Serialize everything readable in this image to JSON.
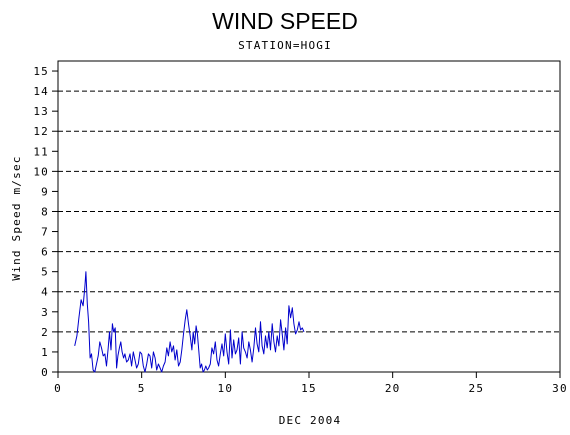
{
  "chart_data": {
    "type": "line",
    "title": "WIND SPEED",
    "subtitle": "STATION=HOGI",
    "xlabel": "DEC 2004",
    "ylabel": "Wind Speed m/sec",
    "xlim": [
      0,
      30
    ],
    "ylim": [
      0,
      15.5
    ],
    "x_ticks": [
      "0",
      "5",
      "10",
      "15",
      "20",
      "25",
      "30"
    ],
    "x_tick_values": [
      0,
      5,
      10,
      15,
      20,
      25,
      30
    ],
    "y_ticks": [
      "0",
      "1",
      "2",
      "3",
      "4",
      "5",
      "6",
      "7",
      "8",
      "9",
      "10",
      "11",
      "12",
      "13",
      "14",
      "15"
    ],
    "y_tick_values": [
      0,
      1,
      2,
      3,
      4,
      5,
      6,
      7,
      8,
      9,
      10,
      11,
      12,
      13,
      14,
      15
    ],
    "gridlines_y": [
      0,
      2,
      4,
      6,
      8,
      10,
      12,
      14
    ],
    "grid": "dashed horizontal at even values",
    "line_color": "#0000cc",
    "series": [
      {
        "x": [
          1.0,
          1.13,
          1.25,
          1.38,
          1.5,
          1.6,
          1.67,
          1.75,
          1.83,
          1.92,
          2.0,
          2.1,
          2.2,
          2.3,
          2.4,
          2.5,
          2.6,
          2.7,
          2.8,
          2.9,
          3.0,
          3.08,
          3.17,
          3.25,
          3.33,
          3.42,
          3.5,
          3.58,
          3.67,
          3.75,
          3.83,
          3.92,
          4.0,
          4.1,
          4.2,
          4.3,
          4.4,
          4.5,
          4.6,
          4.7,
          4.8,
          4.9,
          5.0,
          5.1,
          5.2,
          5.3,
          5.4,
          5.5,
          5.6,
          5.7,
          5.8,
          5.9,
          6.0,
          6.1,
          6.2,
          6.3,
          6.4,
          6.5,
          6.6,
          6.7,
          6.8,
          6.9,
          7.0,
          7.1,
          7.2,
          7.3,
          7.4,
          7.5,
          7.6,
          7.7,
          7.8,
          7.9,
          8.0,
          8.08,
          8.17,
          8.25,
          8.33,
          8.42,
          8.5,
          8.58,
          8.67,
          8.75,
          8.83,
          8.92,
          9.0,
          9.1,
          9.2,
          9.3,
          9.4,
          9.5,
          9.6,
          9.7,
          9.8,
          9.9,
          10.0,
          10.1,
          10.2,
          10.3,
          10.4,
          10.5,
          10.6,
          10.7,
          10.8,
          10.9,
          11.0,
          11.1,
          11.2,
          11.3,
          11.4,
          11.5,
          11.6,
          11.7,
          11.8,
          11.9,
          12.0,
          12.1,
          12.2,
          12.3,
          12.4,
          12.5,
          12.6,
          12.7,
          12.8,
          12.9,
          13.0,
          13.1,
          13.2,
          13.3,
          13.4,
          13.5,
          13.6,
          13.7,
          13.8,
          13.9,
          14.0,
          14.1,
          14.2,
          14.3,
          14.4,
          14.5,
          14.6,
          14.7
        ],
        "y": [
          1.3,
          1.8,
          2.7,
          3.6,
          3.3,
          4.2,
          5.0,
          3.4,
          2.5,
          0.7,
          0.9,
          0.1,
          0.0,
          0.4,
          0.8,
          1.5,
          1.2,
          0.8,
          0.9,
          0.3,
          1.2,
          2.0,
          1.1,
          2.4,
          2.0,
          2.2,
          0.2,
          0.8,
          1.2,
          1.5,
          1.0,
          0.7,
          0.9,
          0.5,
          0.6,
          0.9,
          0.3,
          1.0,
          0.6,
          0.2,
          0.4,
          1.0,
          0.9,
          0.3,
          0.0,
          0.4,
          0.9,
          0.8,
          0.2,
          1.0,
          0.7,
          0.1,
          0.4,
          0.2,
          0.0,
          0.3,
          0.5,
          1.2,
          0.8,
          1.5,
          1.0,
          1.3,
          0.6,
          1.1,
          0.3,
          0.5,
          1.1,
          1.9,
          2.6,
          3.1,
          2.4,
          1.8,
          1.1,
          2.0,
          1.4,
          2.3,
          1.9,
          1.0,
          0.2,
          0.4,
          0.0,
          0.1,
          0.3,
          0.1,
          0.2,
          0.4,
          1.2,
          0.9,
          1.5,
          0.6,
          0.3,
          0.9,
          1.4,
          0.8,
          1.9,
          1.0,
          0.4,
          2.1,
          0.7,
          1.6,
          0.9,
          1.1,
          1.7,
          0.4,
          2.0,
          1.2,
          1.0,
          0.7,
          1.5,
          1.1,
          0.5,
          1.2,
          2.2,
          1.4,
          1.0,
          2.5,
          1.3,
          0.9,
          1.8,
          1.2,
          2.0,
          1.1,
          2.4,
          1.5,
          1.0,
          1.8,
          1.3,
          2.6,
          1.9,
          1.1,
          2.2,
          1.4,
          3.3,
          2.7,
          3.2,
          2.4,
          1.9,
          2.1,
          2.5,
          2.1,
          2.2,
          2.0
        ]
      }
    ]
  }
}
